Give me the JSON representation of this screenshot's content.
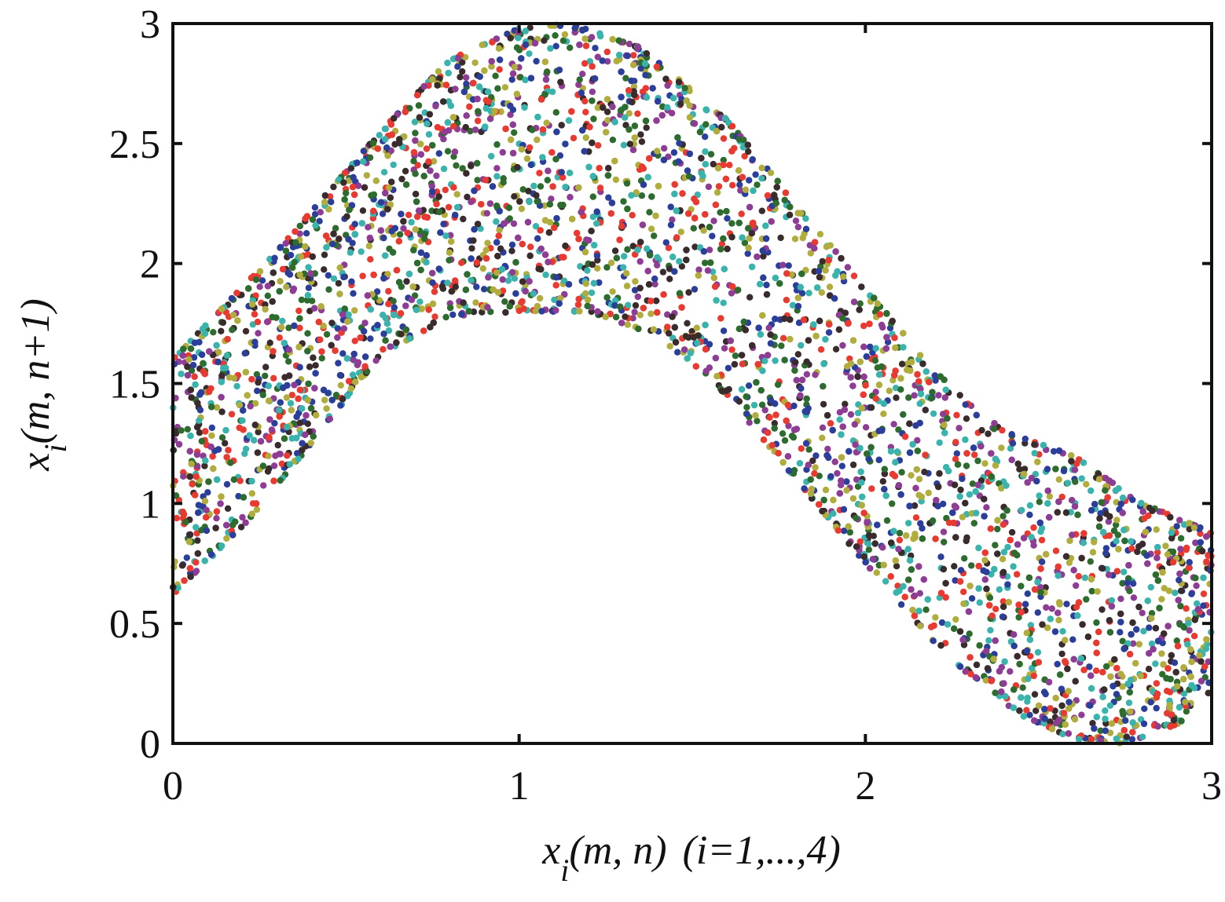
{
  "chart_data": {
    "type": "scatter",
    "title": "",
    "xlabel": {
      "var": "x",
      "sub": "i",
      "args": "(m, n)",
      "range_note": "(i=1,...,4)"
    },
    "ylabel": {
      "var": "x",
      "sub": "i",
      "args": "(m, n+1)"
    },
    "xlim": [
      0,
      3
    ],
    "ylim": [
      0,
      3
    ],
    "x_ticks": [
      0,
      1,
      2,
      3
    ],
    "y_ticks": [
      0,
      0.5,
      1,
      1.5,
      2,
      2.5,
      3
    ],
    "x_tick_labels": [
      "0",
      "1",
      "2",
      "3"
    ],
    "y_tick_labels": [
      "0",
      "0.5",
      "1",
      "1.5",
      "2",
      "2.5",
      "3"
    ],
    "grid": false,
    "legend": "none",
    "description_of_region": {
      "upper_boundary": [
        [
          0.0,
          1.6
        ],
        [
          0.3,
          2.05
        ],
        [
          0.6,
          2.55
        ],
        [
          0.8,
          2.85
        ],
        [
          1.0,
          2.98
        ],
        [
          1.15,
          3.0
        ],
        [
          1.35,
          2.9
        ],
        [
          1.6,
          2.6
        ],
        [
          1.8,
          2.25
        ],
        [
          2.0,
          1.9
        ],
        [
          2.2,
          1.55
        ],
        [
          2.4,
          1.3
        ],
        [
          2.6,
          1.2
        ],
        [
          2.8,
          1.0
        ],
        [
          3.0,
          0.88
        ]
      ],
      "lower_boundary": [
        [
          0.0,
          0.62
        ],
        [
          0.2,
          0.9
        ],
        [
          0.4,
          1.25
        ],
        [
          0.6,
          1.62
        ],
        [
          0.8,
          1.78
        ],
        [
          1.0,
          1.8
        ],
        [
          1.2,
          1.8
        ],
        [
          1.4,
          1.7
        ],
        [
          1.6,
          1.45
        ],
        [
          1.8,
          1.1
        ],
        [
          2.0,
          0.75
        ],
        [
          2.2,
          0.42
        ],
        [
          2.4,
          0.15
        ],
        [
          2.6,
          0.02
        ],
        [
          2.75,
          0.0
        ],
        [
          2.9,
          0.08
        ],
        [
          3.0,
          0.18
        ]
      ]
    },
    "series": [
      {
        "color": "#e83a30"
      },
      {
        "color": "#2b3f9a"
      },
      {
        "color": "#2e6b2e"
      },
      {
        "color": "#8e3d94"
      },
      {
        "color": "#b0ad3e"
      },
      {
        "color": "#3bb3ad"
      },
      {
        "color": "#3a2c2c"
      }
    ],
    "point_count": 5200
  }
}
